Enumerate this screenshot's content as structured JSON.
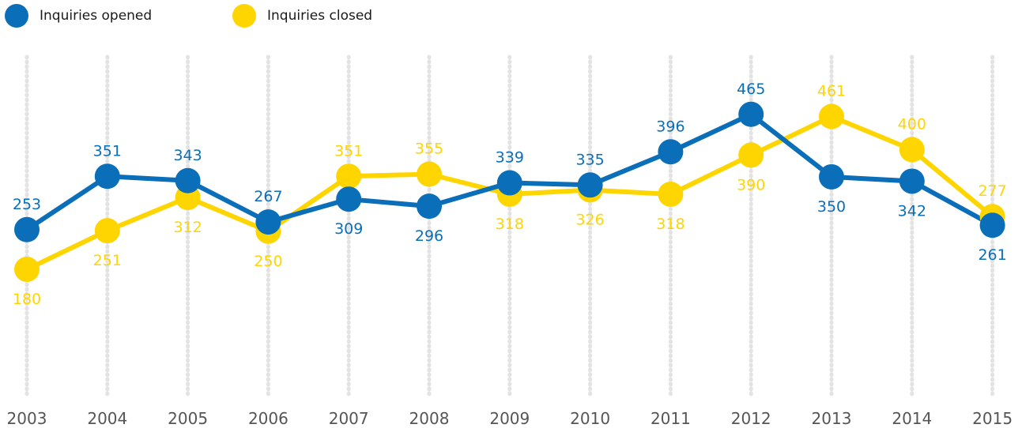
{
  "chart_data": {
    "type": "line",
    "x": [
      "2003",
      "2004",
      "2005",
      "2006",
      "2007",
      "2008",
      "2009",
      "2010",
      "2011",
      "2012",
      "2013",
      "2014",
      "2015"
    ],
    "series": [
      {
        "name": "Inquiries opened",
        "color": "#0b6eb8",
        "values": [
          253,
          351,
          343,
          267,
          309,
          296,
          339,
          335,
          396,
          465,
          350,
          342,
          261
        ],
        "label_pos": [
          "above",
          "above",
          "above",
          "above",
          "below",
          "below",
          "above",
          "above",
          "above",
          "above",
          "below",
          "below",
          "below"
        ]
      },
      {
        "name": "Inquiries closed",
        "color": "#ffd500",
        "values": [
          180,
          251,
          312,
          250,
          351,
          355,
          318,
          326,
          318,
          390,
          461,
          400,
          277
        ],
        "label_pos": [
          "below",
          "below",
          "below",
          "below",
          "above",
          "above",
          "below",
          "below",
          "below",
          "below",
          "above",
          "above",
          "above"
        ]
      }
    ],
    "grid": "vertical dotted",
    "legend": "top-left"
  }
}
